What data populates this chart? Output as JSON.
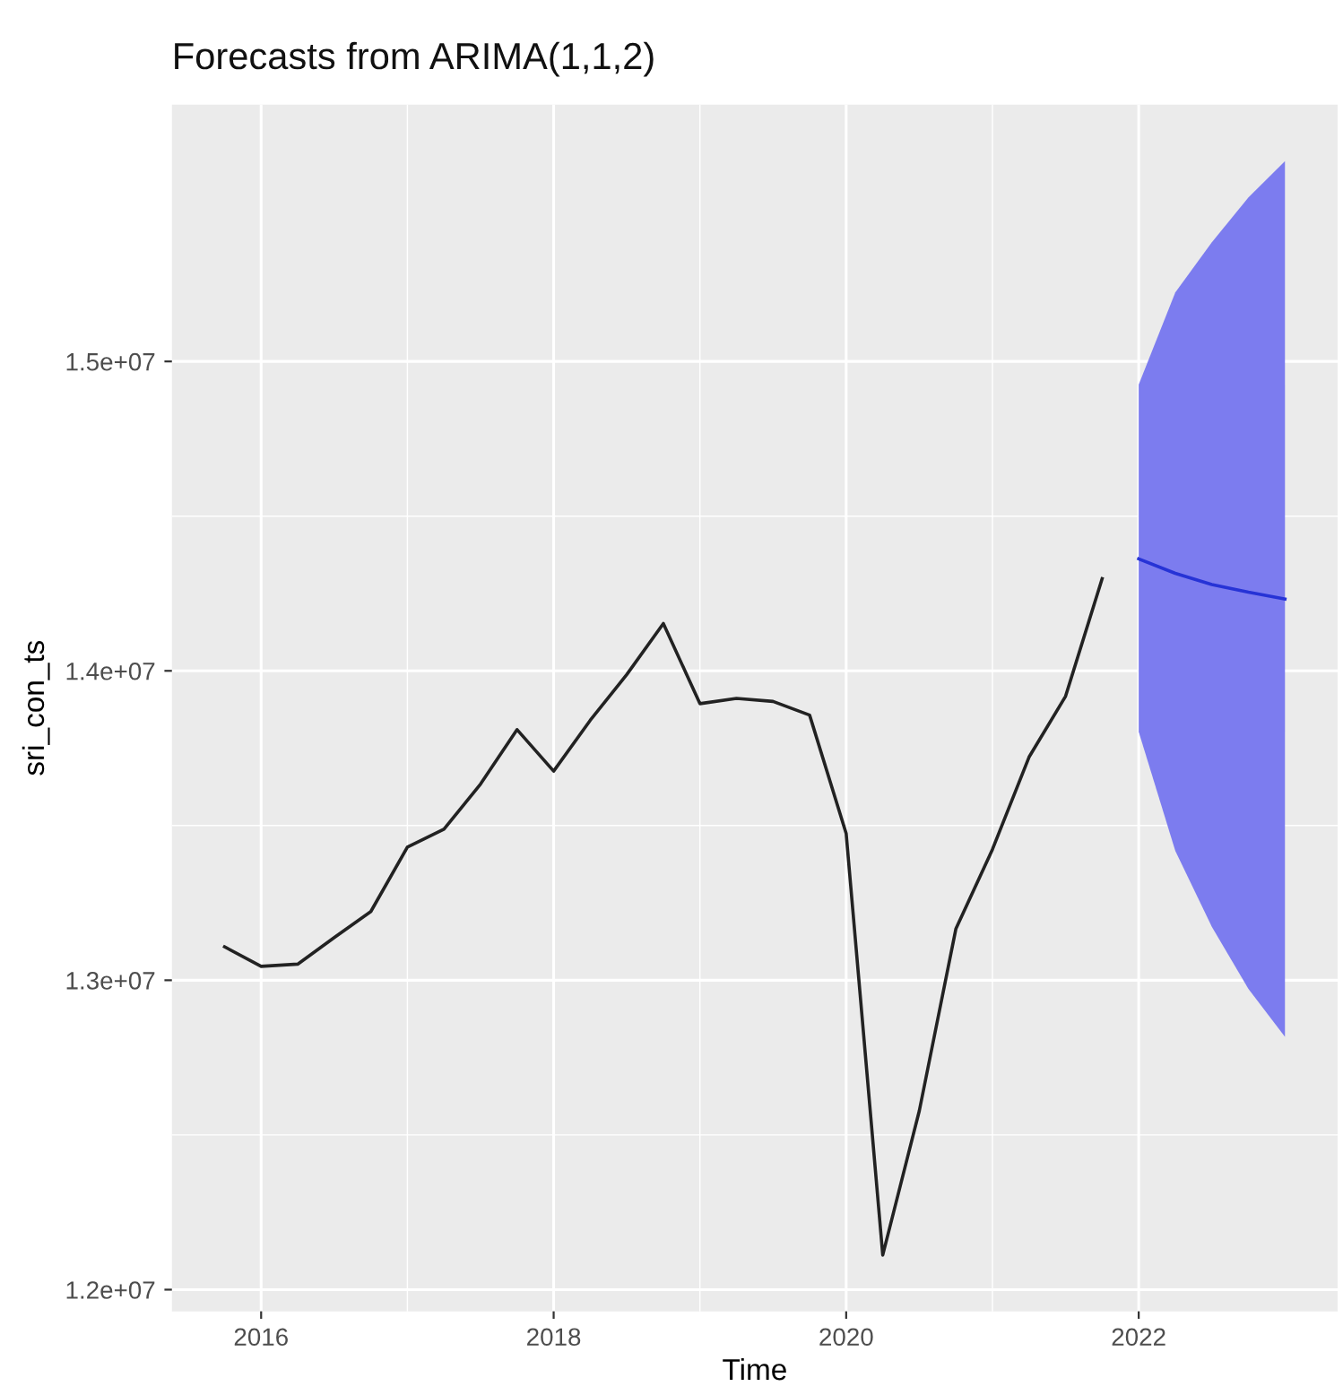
{
  "chart_data": {
    "type": "line",
    "title": "Forecasts from ARIMA(1,1,2)",
    "xlabel": "Time",
    "ylabel": "sri_con_ts",
    "xlim": [
      2015.39,
      2023.36
    ],
    "xticks": [
      2016,
      2018,
      2020,
      2022
    ],
    "ylim": [
      11930000,
      15830000
    ],
    "yticks": [
      {
        "value": 12000000,
        "label": "1.2e+07"
      },
      {
        "value": 13000000,
        "label": "1.3e+07"
      },
      {
        "value": 14000000,
        "label": "1.4e+07"
      },
      {
        "value": 15000000,
        "label": "1.5e+07"
      }
    ],
    "grid": true,
    "series": [
      {
        "color": "#222222",
        "x": [
          2015.75,
          2016.0,
          2016.25,
          2016.5,
          2016.75,
          2017.0,
          2017.25,
          2017.5,
          2017.75,
          2018.0,
          2018.25,
          2018.5,
          2018.75,
          2019.0,
          2019.25,
          2019.5,
          2019.75,
          2020.0,
          2020.25,
          2020.5,
          2020.75,
          2021.0,
          2021.25,
          2021.5,
          2021.75
        ],
        "values": [
          13108000,
          13045000,
          13052000,
          13138000,
          13222000,
          13430000,
          13488000,
          13634000,
          13810000,
          13676000,
          13840000,
          13988000,
          14153000,
          13894000,
          13911000,
          13901000,
          13857000,
          13474000,
          12112000,
          12578000,
          13166000,
          13423000,
          13721000,
          13918000,
          14298000
        ]
      },
      {
        "color": "#2633d6",
        "x": [
          2022.0,
          2022.25,
          2022.5,
          2022.75,
          2023.0
        ],
        "values": [
          14362000,
          14315000,
          14279000,
          14254000,
          14232000
        ],
        "lower": [
          13803000,
          13418000,
          13173000,
          12972000,
          12817000
        ],
        "upper": [
          14925000,
          15223000,
          15385000,
          15530000,
          15647000
        ]
      }
    ]
  }
}
